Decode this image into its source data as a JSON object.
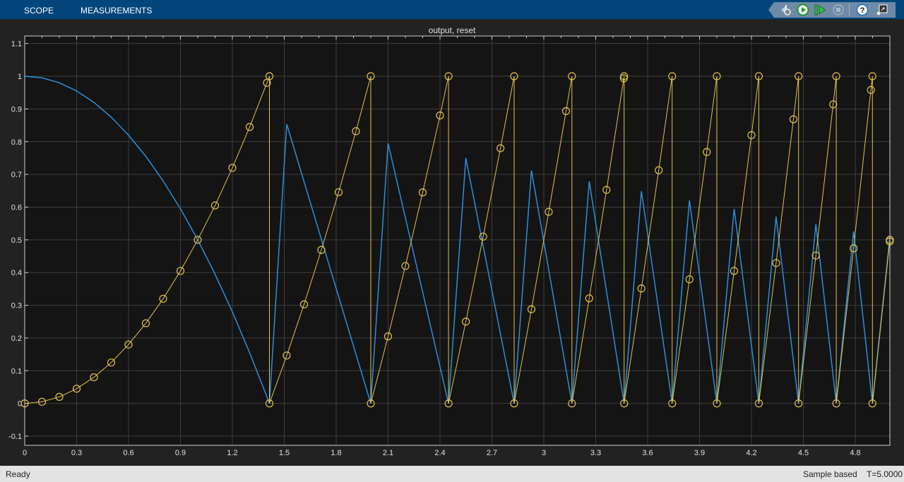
{
  "header": {
    "tabs": [
      {
        "label": "SCOPE"
      },
      {
        "label": "MEASUREMENTS"
      }
    ],
    "toolbar": [
      {
        "icon": "simulink-gear-icon",
        "label": "Highlight in model"
      },
      {
        "icon": "run-icon",
        "label": "Run"
      },
      {
        "icon": "step-forward-icon",
        "label": "Step forward"
      },
      {
        "icon": "stop-icon",
        "label": "Stop"
      },
      {
        "icon": "help-icon",
        "label": "Help"
      },
      {
        "icon": "undock-icon",
        "label": "Undock"
      }
    ]
  },
  "status": {
    "left": "Ready",
    "mode": "Sample based",
    "time": "T=5.0000"
  },
  "colors": {
    "accent": "#02457a",
    "series_blue": "#2b8fdc",
    "series_yellow": "#e3c14f",
    "plot_bg": "#141414"
  },
  "chart_data": {
    "type": "line",
    "title": "output, reset",
    "xlim": [
      0,
      5
    ],
    "ylim": [
      -0.128,
      1.123
    ],
    "grid": true,
    "xticks": [
      0,
      0.3,
      0.6,
      0.9,
      1.2,
      1.5,
      1.8,
      2.1,
      2.4,
      2.7,
      3,
      3.3,
      3.6,
      3.9,
      4.2,
      4.5,
      4.8
    ],
    "xtick_labels": [
      "0",
      "0.3",
      "0.6",
      "0.9",
      "1.2",
      "1.5",
      "1.8",
      "2.1",
      "2.4",
      "2.7",
      "3",
      "3.3",
      "3.6",
      "3.9",
      "4.2",
      "4.5",
      "4.8"
    ],
    "yticks": [
      -0.1,
      0,
      0.1,
      0.2,
      0.3,
      0.4,
      0.5,
      0.6,
      0.7,
      0.8,
      0.9,
      1,
      1.1
    ],
    "ytick_labels": [
      "-0.1",
      "0",
      "0.1",
      "0.2",
      "0.3",
      "0.4",
      "0.5",
      "0.6",
      "0.7",
      "0.8",
      "0.9",
      "1",
      "1.1"
    ],
    "series": [
      {
        "color": "#2b8fdc",
        "marker": "none",
        "points": [
          [
            0,
            1
          ],
          [
            0.1,
            0.995
          ],
          [
            0.2,
            0.98
          ],
          [
            0.3,
            0.955
          ],
          [
            0.4,
            0.92
          ],
          [
            0.5,
            0.875
          ],
          [
            0.6,
            0.82
          ],
          [
            0.7,
            0.755
          ],
          [
            0.8,
            0.68
          ],
          [
            0.9,
            0.595
          ],
          [
            1,
            0.5
          ],
          [
            1.1,
            0.395
          ],
          [
            1.2,
            0.28
          ],
          [
            1.3,
            0.155
          ],
          [
            1.4,
            0.02
          ],
          [
            1.4142,
            0
          ],
          [
            1.5142,
            0.8536
          ],
          [
            2,
            0
          ],
          [
            2.1,
            0.795
          ],
          [
            2.4495,
            0
          ],
          [
            2.5495,
            0.75
          ],
          [
            2.8284,
            0
          ],
          [
            2.9284,
            0.7122
          ],
          [
            3.1623,
            0
          ],
          [
            3.2623,
            0.6787
          ],
          [
            3.4641,
            0
          ],
          [
            3.5641,
            0.6486
          ],
          [
            3.7417,
            0
          ],
          [
            3.8417,
            0.6207
          ],
          [
            4,
            0
          ],
          [
            4.1,
            0.595
          ],
          [
            4.2426,
            0
          ],
          [
            4.3426,
            0.5709
          ],
          [
            4.4721,
            0
          ],
          [
            4.5721,
            0.5479
          ],
          [
            4.6904,
            0
          ],
          [
            4.7904,
            0.526
          ],
          [
            4.899,
            0
          ],
          [
            4.999,
            0.505
          ],
          [
            5,
            0.5
          ]
        ]
      },
      {
        "color": "#e3c14f",
        "marker": "circle",
        "points": [
          [
            0,
            0
          ],
          [
            0.1,
            0.005
          ],
          [
            0.2,
            0.02
          ],
          [
            0.3,
            0.045
          ],
          [
            0.4,
            0.08
          ],
          [
            0.5,
            0.125
          ],
          [
            0.6,
            0.18
          ],
          [
            0.7,
            0.245
          ],
          [
            0.8,
            0.32
          ],
          [
            0.9,
            0.405
          ],
          [
            1,
            0.5
          ],
          [
            1.1,
            0.605
          ],
          [
            1.2,
            0.72
          ],
          [
            1.3,
            0.845
          ],
          [
            1.4,
            0.98
          ],
          [
            1.4142,
            1
          ],
          [
            1.4142,
            0
          ],
          [
            1.5142,
            0.1464
          ],
          [
            1.6142,
            0.3028
          ],
          [
            1.7142,
            0.4692
          ],
          [
            1.8142,
            0.6457
          ],
          [
            1.9142,
            0.8321
          ],
          [
            2,
            1
          ],
          [
            2,
            0
          ],
          [
            2.1,
            0.205
          ],
          [
            2.2,
            0.42
          ],
          [
            2.3,
            0.645
          ],
          [
            2.4,
            0.88
          ],
          [
            2.4495,
            1
          ],
          [
            2.4495,
            0
          ],
          [
            2.5495,
            0.25
          ],
          [
            2.6495,
            0.5099
          ],
          [
            2.7495,
            0.7799
          ],
          [
            2.8284,
            1
          ],
          [
            2.8284,
            0
          ],
          [
            2.9284,
            0.2878
          ],
          [
            3.0284,
            0.5856
          ],
          [
            3.1284,
            0.8935
          ],
          [
            3.1623,
            1
          ],
          [
            3.1623,
            0
          ],
          [
            3.2623,
            0.3213
          ],
          [
            3.3623,
            0.6526
          ],
          [
            3.4623,
            0.9938
          ],
          [
            3.4641,
            1
          ],
          [
            3.4641,
            0
          ],
          [
            3.5641,
            0.3514
          ],
          [
            3.6641,
            0.7128
          ],
          [
            3.7417,
            1
          ],
          [
            3.7417,
            0
          ],
          [
            3.8417,
            0.3793
          ],
          [
            3.9417,
            0.7685
          ],
          [
            4,
            1
          ],
          [
            4,
            0
          ],
          [
            4.1,
            0.405
          ],
          [
            4.2,
            0.82
          ],
          [
            4.2426,
            1
          ],
          [
            4.2426,
            0
          ],
          [
            4.3426,
            0.4291
          ],
          [
            4.4426,
            0.8684
          ],
          [
            4.4721,
            1
          ],
          [
            4.4721,
            0
          ],
          [
            4.5721,
            0.4521
          ],
          [
            4.6721,
            0.9142
          ],
          [
            4.6904,
            1
          ],
          [
            4.6904,
            0
          ],
          [
            4.7904,
            0.474
          ],
          [
            4.8904,
            0.958
          ],
          [
            4.899,
            1
          ],
          [
            4.899,
            0
          ],
          [
            4.999,
            0.495
          ],
          [
            5,
            0.5
          ]
        ]
      }
    ]
  }
}
